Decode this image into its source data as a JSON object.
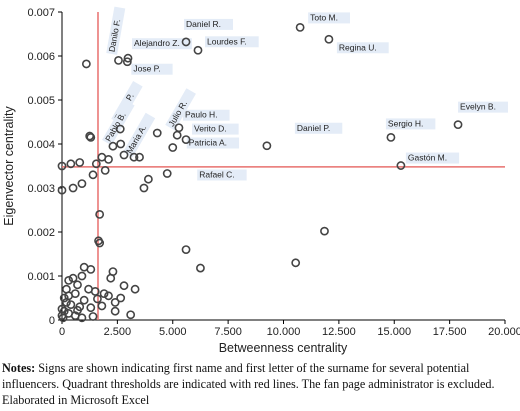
{
  "chart_data": {
    "type": "scatter",
    "x_label": "Betweenness centrality",
    "y_label": "Eigenvector centrality",
    "xlim": [
      0,
      20000
    ],
    "ylim": [
      0,
      0.007
    ],
    "xticks": [
      0,
      {
        "value": 2500,
        "label": "2.500"
      },
      {
        "value": 5000,
        "label": "5.000"
      },
      {
        "value": 7500,
        "label": "7.500"
      },
      {
        "value": 10000,
        "label": "10.000"
      },
      {
        "value": 12500,
        "label": "12.500"
      },
      {
        "value": 15000,
        "label": "15.000"
      },
      {
        "value": 17500,
        "label": "17.500"
      },
      {
        "value": 20000,
        "label": "20.000"
      }
    ],
    "yticks": [
      0,
      0.001,
      0.002,
      0.003,
      0.004,
      0.005,
      0.006,
      0.007
    ],
    "color": "#444444",
    "label_box_color": "#e4ecf7",
    "thresholds": {
      "x": 1625,
      "y": 0.00348,
      "color": "#e8706e"
    },
    "series": [
      {
        "x": [
          10750,
          12050,
          5600,
          6140,
          2550,
          2980,
          2950,
          17880,
          14850,
          9250,
          15300,
          2630,
          5280,
          5200,
          5600,
          2300,
          3250,
          5000,
          4750
        ],
        "y": [
          0.00665,
          0.00638,
          0.00632,
          0.00613,
          0.0059,
          0.00595,
          0.00587,
          0.00444,
          0.00415,
          0.00396,
          0.00351,
          0.00434,
          0.00437,
          0.0042,
          0.0041,
          0.00395,
          0.0037,
          0.00392,
          0.00333
        ],
        "labels": [
          "Toto M.",
          "Regina U.",
          "Daniel R.",
          "Lourdes F.",
          "Danilo F.",
          "Alejandro Z.",
          "Jose P.",
          "Evelyn B.",
          "Sergio H.",
          "Daniel P.",
          "Gastón M.",
          "Rene P.",
          "Paulo H.",
          "Julio R.",
          "Verito D.",
          "Pablo B.",
          "Maria A.",
          "Patricia A.",
          "Rafael C."
        ]
      },
      {
        "x": [
          1100,
          1250,
          1300,
          0,
          0,
          400,
          800,
          500,
          900,
          1400,
          1550,
          1800,
          1950,
          2100,
          2800,
          3500,
          3900,
          3700,
          4300,
          2650,
          1700,
          1650,
          1700,
          1000,
          1300,
          2200,
          2300,
          5600,
          6250,
          10550,
          11850,
          2800,
          2650,
          3300,
          900,
          500,
          300,
          700,
          1200,
          1500,
          1900,
          2100,
          600,
          300,
          100,
          200,
          400,
          800,
          1300,
          1800,
          2400,
          100,
          300,
          600,
          50,
          900,
          1400,
          200,
          1000,
          0,
          1600,
          2400,
          3100,
          700,
          0
        ],
        "y": [
          0.00582,
          0.00418,
          0.00415,
          0.0035,
          0.00295,
          0.00355,
          0.00358,
          0.003,
          0.0031,
          0.0033,
          0.00355,
          0.0037,
          0.0034,
          0.00365,
          0.00375,
          0.0037,
          0.0032,
          0.003,
          0.00425,
          0.004,
          0.0024,
          0.0018,
          0.00175,
          0.0012,
          0.00115,
          0.00095,
          0.0011,
          0.0016,
          0.00118,
          0.0013,
          0.00202,
          0.00078,
          0.0005,
          0.0007,
          0.001,
          0.00095,
          0.0009,
          0.0008,
          0.0007,
          0.00065,
          0.0006,
          0.00055,
          0.0006,
          0.00055,
          0.0005,
          0.0004,
          0.00035,
          0.0003,
          0.00028,
          0.00032,
          0.0004,
          0.0002,
          0.00015,
          0.0001,
          5e-05,
          5e-05,
          8e-05,
          0.0007,
          0.00045,
          0.00025,
          0.00048,
          0.0002,
          0.00012,
          0.00022,
          0.0001
        ]
      }
    ]
  },
  "notes": {
    "label": "Notes:",
    "text": "Signs are shown indicating first name and first letter of the surname for several potential influencers. Quadrant thresholds are indicated with red lines. The fan page administrator is excluded. Elaborated in Microsoft Excel"
  }
}
